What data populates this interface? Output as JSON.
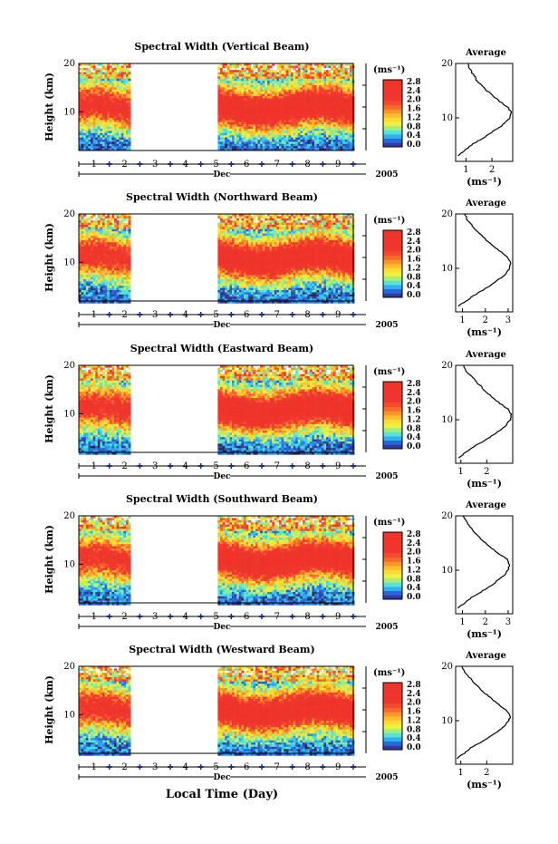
{
  "figure": {
    "xlabel": "Local Time (Day)",
    "month_label": "Dec",
    "year_label": "2005",
    "unit_label": "(ms⁻¹)",
    "avg_title": "Average",
    "avg_xlabel": "(ms⁻¹)"
  },
  "chart_data": [
    {
      "type": "heatmap",
      "title": "Spectral Width (Vertical Beam)",
      "ylabel": "Height (km)",
      "yticks": [
        "20",
        "10"
      ],
      "ylim": [
        2,
        20
      ],
      "day_ticks": [
        "1",
        "2",
        "3",
        "4",
        "5",
        "6",
        "7",
        "8",
        "9"
      ],
      "xlim_days": [
        0.5,
        9.5
      ],
      "data_gap_days": [
        2.25,
        5.0
      ],
      "colorbar_ticks": [
        "2.8",
        "2.4",
        "2.0",
        "1.6",
        "1.2",
        "0.8",
        "0.4",
        "0.0"
      ],
      "colorbar_range": [
        0,
        3.0
      ],
      "peak_height_km": 11,
      "average": {
        "xticks": [
          "1",
          "2"
        ],
        "xlim": [
          0.6,
          2.8
        ],
        "heights_km": [
          3,
          5,
          7,
          9,
          10,
          11,
          12,
          13,
          15,
          17,
          19,
          20
        ],
        "values": [
          0.7,
          1.2,
          1.9,
          2.5,
          2.7,
          2.75,
          2.6,
          2.3,
          1.8,
          1.4,
          1.15,
          1.05
        ]
      }
    },
    {
      "type": "heatmap",
      "title": "Spectral Width (Northward Beam)",
      "ylabel": "Height (km)",
      "yticks": [
        "20",
        "10"
      ],
      "ylim": [
        2,
        20
      ],
      "day_ticks": [
        "1",
        "2",
        "3",
        "4",
        "5",
        "6",
        "7",
        "8",
        "9"
      ],
      "xlim_days": [
        0.5,
        9.5
      ],
      "data_gap_days": [
        2.25,
        5.0
      ],
      "colorbar_ticks": [
        "2.8",
        "2.4",
        "2.0",
        "1.6",
        "1.2",
        "0.8",
        "0.4",
        "0.0"
      ],
      "colorbar_range": [
        0,
        3.0
      ],
      "peak_height_km": 11,
      "average": {
        "xticks": [
          "1",
          "2",
          "3"
        ],
        "xlim": [
          0.7,
          3.2
        ],
        "heights_km": [
          3,
          5,
          7,
          9,
          10,
          11,
          12,
          13,
          15,
          17,
          19,
          20
        ],
        "values": [
          0.8,
          1.5,
          2.3,
          2.9,
          3.05,
          3.1,
          3.0,
          2.7,
          2.1,
          1.6,
          1.2,
          1.1
        ]
      }
    },
    {
      "type": "heatmap",
      "title": "Spectral Width (Eastward Beam)",
      "ylabel": "Height (km)",
      "yticks": [
        "20",
        "10"
      ],
      "ylim": [
        2,
        20
      ],
      "day_ticks": [
        "1",
        "2",
        "3",
        "4",
        "5",
        "6",
        "7",
        "8",
        "9"
      ],
      "xlim_days": [
        0.5,
        9.5
      ],
      "data_gap_days": [
        2.25,
        5.0
      ],
      "colorbar_ticks": [
        "2.8",
        "2.4",
        "2.0",
        "1.6",
        "1.2",
        "0.8",
        "0.4",
        "0.0"
      ],
      "colorbar_range": [
        0,
        3.0
      ],
      "peak_height_km": 11,
      "average": {
        "xticks": [
          "1",
          "2"
        ],
        "xlim": [
          0.8,
          3.0
        ],
        "heights_km": [
          3,
          5,
          7,
          9,
          10,
          11,
          12,
          13,
          15,
          17,
          19,
          20
        ],
        "values": [
          0.9,
          1.5,
          2.2,
          2.75,
          2.9,
          2.95,
          2.8,
          2.5,
          2.0,
          1.6,
          1.2,
          1.1
        ]
      }
    },
    {
      "type": "heatmap",
      "title": "Spectral Width (Southward Beam)",
      "ylabel": "Height (km)",
      "yticks": [
        "20",
        "10"
      ],
      "ylim": [
        2,
        20
      ],
      "day_ticks": [
        "1",
        "2",
        "3",
        "4",
        "5",
        "6",
        "7",
        "8",
        "9"
      ],
      "xlim_days": [
        0.5,
        9.5
      ],
      "data_gap_days": [
        2.25,
        5.0
      ],
      "colorbar_ticks": [
        "2.8",
        "2.4",
        "2.0",
        "1.6",
        "1.2",
        "0.8",
        "0.4",
        "0.0"
      ],
      "colorbar_range": [
        0,
        3.0
      ],
      "peak_height_km": 11,
      "average": {
        "xticks": [
          "1",
          "2",
          "3"
        ],
        "xlim": [
          0.7,
          3.2
        ],
        "heights_km": [
          3,
          5,
          7,
          9,
          10,
          11,
          12,
          13,
          15,
          17,
          19,
          20
        ],
        "values": [
          0.8,
          1.4,
          2.2,
          2.8,
          3.0,
          3.05,
          2.95,
          2.6,
          2.0,
          1.5,
          1.15,
          1.05
        ]
      }
    },
    {
      "type": "heatmap",
      "title": "Spectral Width (Westward Beam)",
      "ylabel": "Height (km)",
      "yticks": [
        "20",
        "10"
      ],
      "ylim": [
        2,
        20
      ],
      "day_ticks": [
        "1",
        "2",
        "3",
        "4",
        "5",
        "6",
        "7",
        "8",
        "9"
      ],
      "xlim_days": [
        0.5,
        9.5
      ],
      "data_gap_days": [
        2.25,
        5.0
      ],
      "colorbar_ticks": [
        "2.8",
        "2.4",
        "2.0",
        "1.6",
        "1.2",
        "0.8",
        "0.4",
        "0.0"
      ],
      "colorbar_range": [
        0,
        3.0
      ],
      "peak_height_km": 11,
      "average": {
        "xticks": [
          "1",
          "2"
        ],
        "xlim": [
          0.8,
          3.0
        ],
        "heights_km": [
          3,
          5,
          7,
          9,
          10,
          11,
          12,
          13,
          15,
          17,
          19,
          20
        ],
        "values": [
          0.85,
          1.4,
          2.1,
          2.7,
          2.85,
          2.9,
          2.75,
          2.45,
          1.95,
          1.5,
          1.15,
          1.05
        ]
      }
    }
  ]
}
